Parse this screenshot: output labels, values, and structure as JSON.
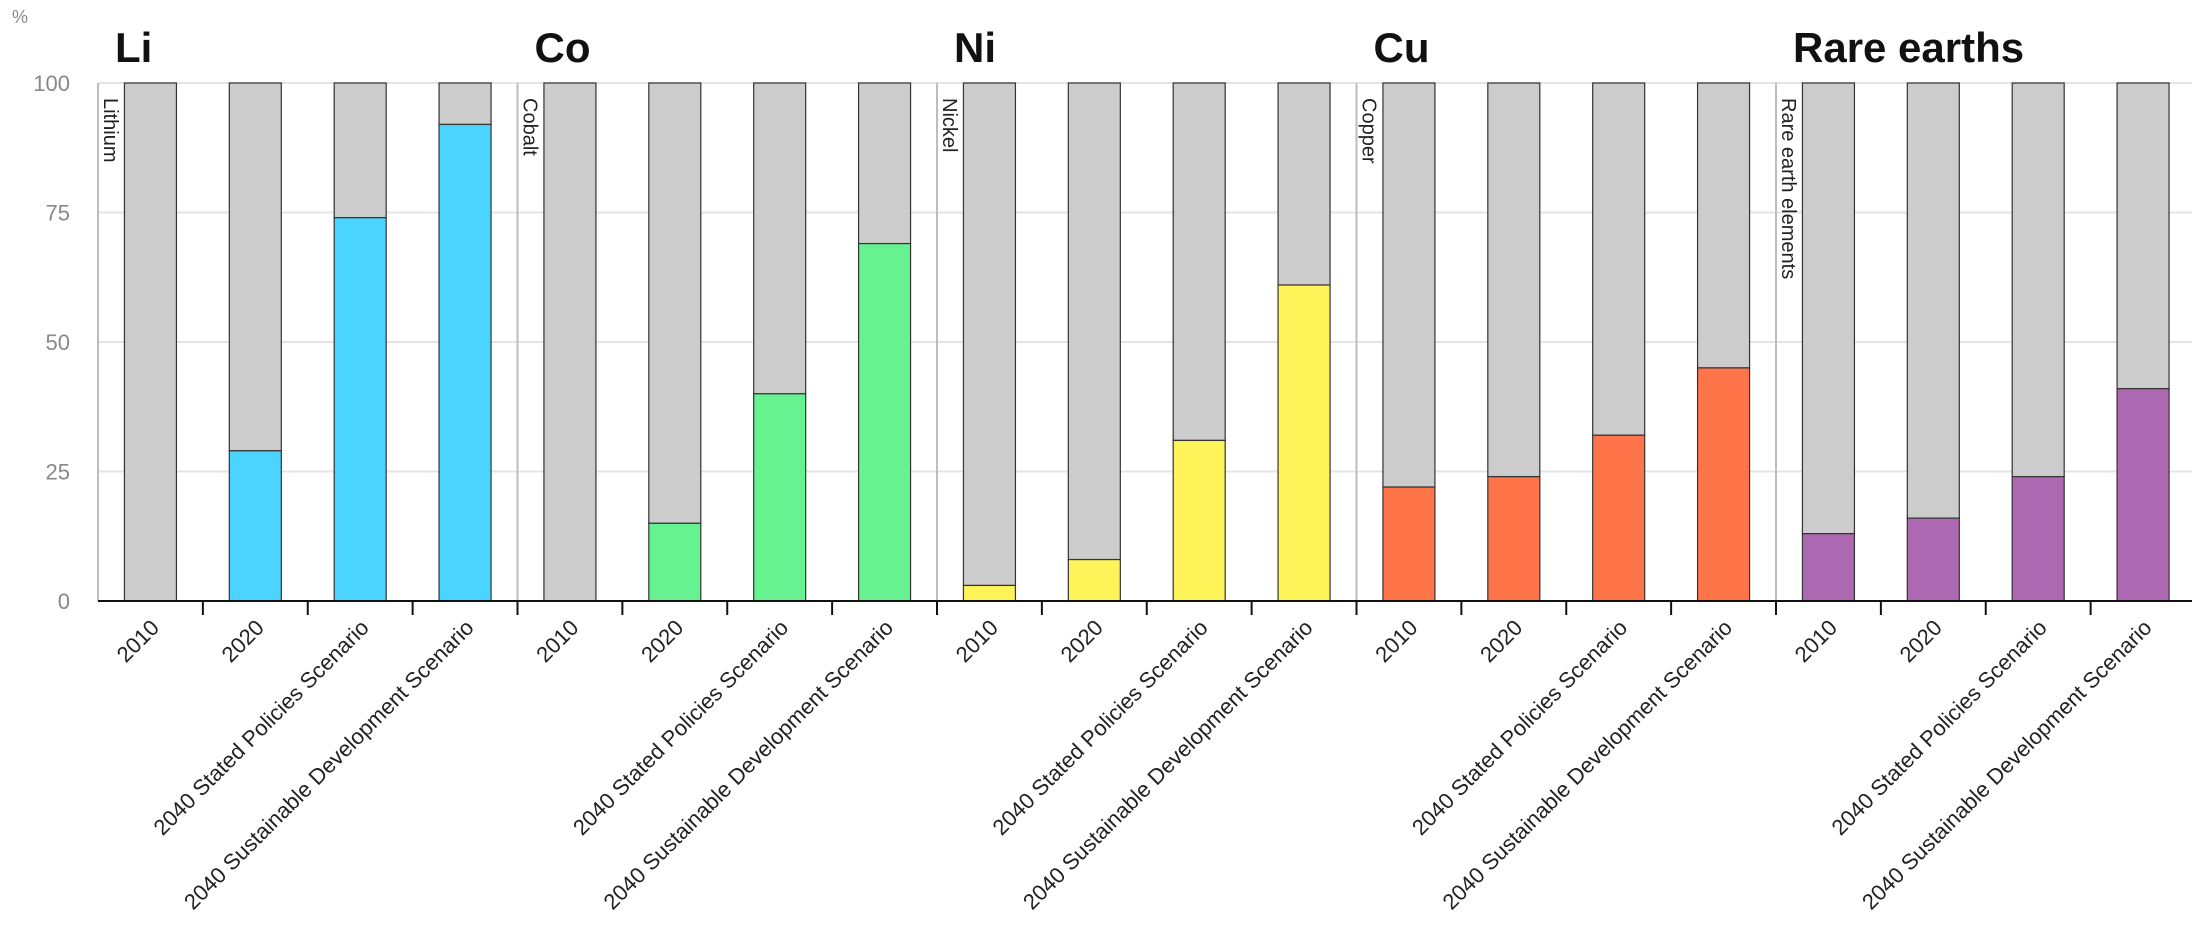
{
  "chart_data": {
    "type": "bar",
    "stacked": true,
    "ylabel": "%",
    "ylim": [
      0,
      100
    ],
    "yticks": [
      0,
      25,
      50,
      75,
      100
    ],
    "grid": true,
    "legend": "none",
    "categories": [
      "2010",
      "2020",
      "2040 Stated Policies Scenario",
      "2040 Sustainable Development Scenario"
    ],
    "remainder_color": "#cccccc",
    "groups": [
      {
        "title": "Li",
        "name": "Lithium",
        "color": "#4ad4ff",
        "values": [
          0,
          29,
          74,
          92
        ]
      },
      {
        "title": "Co",
        "name": "Cobalt",
        "color": "#66f291",
        "values": [
          0,
          15,
          40,
          69
        ]
      },
      {
        "title": "Ni",
        "name": "Nickel",
        "color": "#fff35a",
        "values": [
          3,
          8,
          31,
          61
        ]
      },
      {
        "title": "Cu",
        "name": "Copper",
        "color": "#ff7549",
        "values": [
          22,
          24,
          32,
          45
        ]
      },
      {
        "title": "Rare earths",
        "name": "Rare earth elements",
        "color": "#ac69b2",
        "values": [
          13,
          16,
          24,
          41
        ]
      }
    ]
  }
}
